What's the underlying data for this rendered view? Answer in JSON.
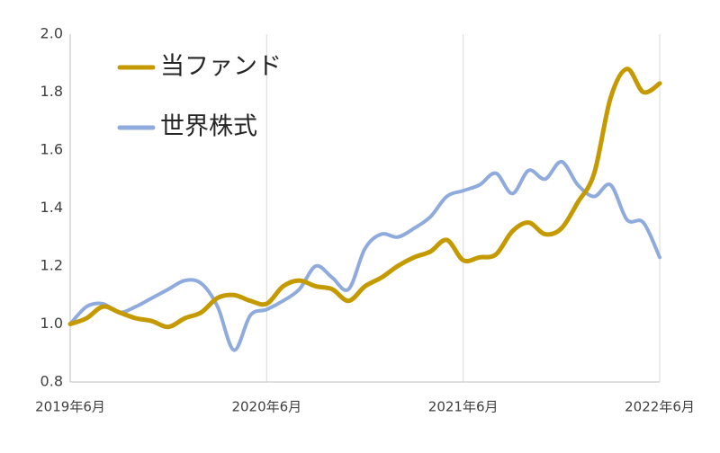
{
  "chart_data": {
    "type": "line",
    "categories": [
      "2019年6月",
      null,
      null,
      null,
      null,
      null,
      null,
      null,
      null,
      null,
      null,
      null,
      "2020年6月",
      null,
      null,
      null,
      null,
      null,
      null,
      null,
      null,
      null,
      null,
      null,
      "2021年6月",
      null,
      null,
      null,
      null,
      null,
      null,
      null,
      null,
      null,
      null,
      null,
      "2022年6月"
    ],
    "series": [
      {
        "name": "当ファンド",
        "color": "#c49a00",
        "values": [
          1.0,
          1.02,
          1.06,
          1.04,
          1.02,
          1.01,
          0.99,
          1.02,
          1.04,
          1.09,
          1.1,
          1.08,
          1.07,
          1.13,
          1.15,
          1.13,
          1.12,
          1.08,
          1.13,
          1.16,
          1.2,
          1.23,
          1.25,
          1.29,
          1.22,
          1.23,
          1.24,
          1.32,
          1.35,
          1.31,
          1.33,
          1.42,
          1.52,
          1.78,
          1.88,
          1.8,
          1.83
        ]
      },
      {
        "name": "世界株式",
        "color": "#8faadc",
        "values": [
          1.0,
          1.06,
          1.07,
          1.04,
          1.06,
          1.09,
          1.12,
          1.15,
          1.14,
          1.06,
          0.91,
          1.03,
          1.05,
          1.08,
          1.12,
          1.2,
          1.16,
          1.12,
          1.26,
          1.31,
          1.3,
          1.33,
          1.37,
          1.44,
          1.46,
          1.48,
          1.52,
          1.45,
          1.53,
          1.5,
          1.56,
          1.48,
          1.44,
          1.48,
          1.36,
          1.35,
          1.23
        ]
      }
    ],
    "ylim": [
      0.8,
      2.0
    ],
    "yticks": [
      0.8,
      {
        "value": 1.0,
        "label": "1.0"
      },
      1.2,
      1.4,
      1.6,
      1.8,
      {
        "value": 2.0,
        "label": "2.0"
      }
    ],
    "grid": "x"
  }
}
